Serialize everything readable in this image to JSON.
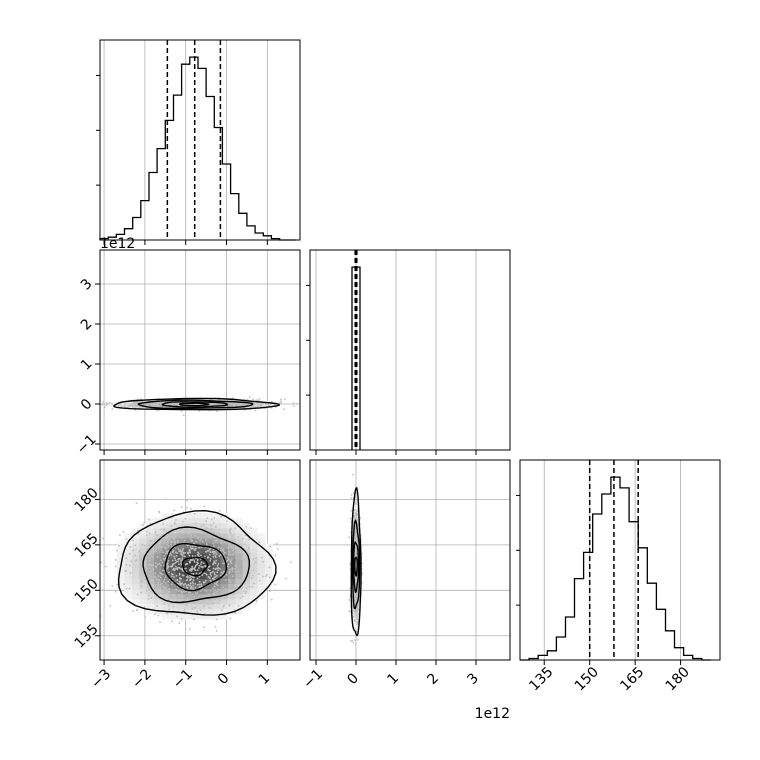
{
  "chart_data": {
    "type": "corner",
    "variables": [
      {
        "name": "",
        "range": [
          -3.1,
          1.8
        ],
        "ticks": [
          -3,
          -2,
          -1,
          0,
          1
        ],
        "tick_labels": [
          "−3",
          "−2",
          "−1",
          "0",
          "1"
        ],
        "offset_label": "1e12",
        "quantiles": [
          -1.45,
          -0.78,
          -0.15
        ]
      },
      {
        "name": "",
        "range": [
          -1.15,
          3.85
        ],
        "ticks": [
          -1,
          0,
          1,
          2,
          3
        ],
        "tick_labels": [
          "−1",
          "0",
          "1",
          "2",
          "3"
        ],
        "offset_label": "1e12",
        "quantiles": [
          -0.02,
          0.0,
          0.02
        ]
      },
      {
        "name": "",
        "range": [
          127,
          193
        ],
        "ticks": [
          135,
          150,
          165,
          180
        ],
        "tick_labels": [
          "135",
          "150",
          "165",
          "180"
        ],
        "offset_label": "",
        "quantiles": [
          150,
          158,
          166
        ]
      }
    ],
    "histograms": [
      {
        "variable": 0,
        "edges": [
          -3.1,
          -2.9,
          -2.7,
          -2.5,
          -2.3,
          -2.1,
          -1.9,
          -1.7,
          -1.5,
          -1.3,
          -1.1,
          -0.9,
          -0.7,
          -0.5,
          -0.3,
          -0.1,
          0.1,
          0.3,
          0.5,
          0.7,
          0.9,
          1.1,
          1.3,
          1.5,
          1.7
        ],
        "counts": [
          1,
          2,
          4,
          8,
          16,
          28,
          48,
          65,
          85,
          103,
          125,
          130,
          122,
          102,
          80,
          54,
          33,
          19,
          10,
          5,
          3,
          1,
          0,
          0
        ]
      },
      {
        "variable": 1,
        "edges": [
          -0.1,
          0.0,
          0.1
        ],
        "counts": [
          1000,
          1000
        ]
      },
      {
        "variable": 2,
        "edges": [
          127,
          130,
          133,
          136,
          139,
          142,
          145,
          148,
          151,
          154,
          157,
          160,
          163,
          166,
          169,
          172,
          175,
          178,
          181,
          184,
          187,
          190
        ],
        "counts": [
          0,
          1,
          3,
          6,
          15,
          28,
          53,
          70,
          95,
          108,
          119,
          112,
          90,
          73,
          50,
          33,
          19,
          8,
          3,
          1,
          0
        ]
      }
    ],
    "contours": [
      {
        "x_var": 0,
        "y_var": 1,
        "center": [
          -0.8,
          -0.01
        ],
        "levels_halfwidth": [
          [
            0.35,
            0.03
          ],
          [
            0.8,
            0.065
          ],
          [
            1.4,
            0.1
          ],
          [
            2.0,
            0.14
          ]
        ]
      },
      {
        "x_var": 0,
        "y_var": 2,
        "center": [
          -0.78,
          158
        ],
        "levels_halfwidth": [
          [
            0.3,
            3
          ],
          [
            0.75,
            7.5
          ],
          [
            1.3,
            12
          ],
          [
            1.9,
            17
          ]
        ]
      },
      {
        "x_var": 1,
        "y_var": 2,
        "center": [
          0.0,
          158
        ],
        "levels_halfwidth": [
          [
            0.03,
            3
          ],
          [
            0.06,
            8
          ],
          [
            0.09,
            14
          ],
          [
            0.12,
            24
          ]
        ]
      }
    ],
    "grid": true,
    "grid_color": "#b0b0b0",
    "line_color": "#000000"
  }
}
